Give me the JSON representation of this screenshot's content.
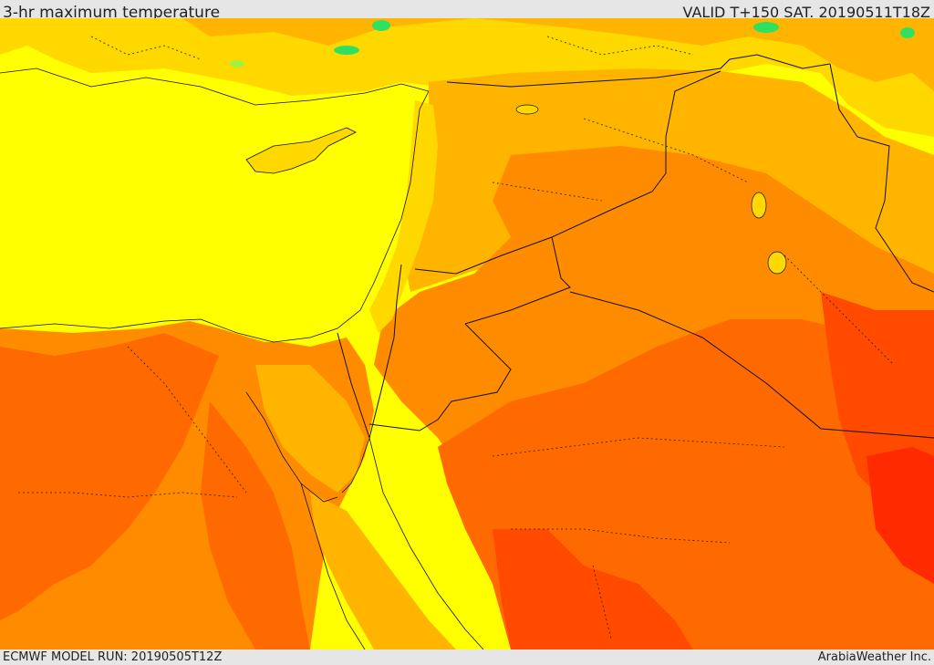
{
  "header": {
    "title": "3-hr maximum temperature",
    "valid": "VALID T+150 SAT. 20190511T18Z"
  },
  "footer": {
    "model_run": "ECMWF MODEL RUN: 20190505T12Z",
    "credit": "ArabiaWeather Inc."
  },
  "map": {
    "field": "temperature",
    "colors": {
      "sea": "#ffff00",
      "cool": "#ffd800",
      "mild": "#ffb400",
      "warm": "#ff8c00",
      "hot": "#ff6a00",
      "very_hot": "#ff4a00",
      "extreme": "#ff2a00",
      "cold_spot": "#30e060",
      "cold_spot_light": "#a0f040",
      "border": "#111111"
    }
  }
}
